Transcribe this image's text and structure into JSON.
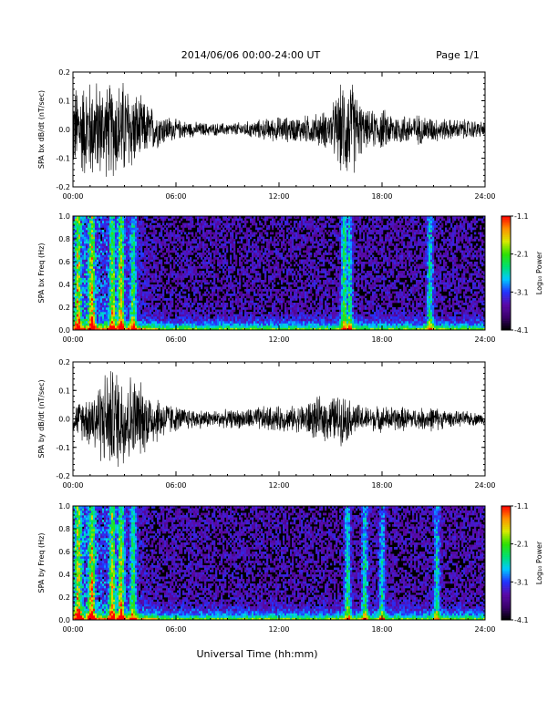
{
  "header": {
    "title": "2014/06/06  00:00-24:00 UT",
    "page": "Page 1/1"
  },
  "xlabel": "Universal Time (hh:mm)",
  "x_ticks": [
    "00:00",
    "06:00",
    "12:00",
    "18:00",
    "24:00"
  ],
  "colorbar": {
    "label": "Log₁₀ Power",
    "ticks": [
      "-1.1",
      "-2.1",
      "-3.1",
      "-4.1"
    ],
    "range": [
      -4.1,
      -1.1
    ],
    "colormap": [
      "#000000",
      "#3a006b",
      "#5a0aa8",
      "#2233ff",
      "#00c8ff",
      "#00e070",
      "#30e000",
      "#d8e800",
      "#ff9000",
      "#ff0000"
    ]
  },
  "panels": [
    {
      "id": "bx_dbdt",
      "type": "line",
      "ylabel": "SPA bx dB/dt (nT/sec)",
      "yticks": [
        "0.2",
        "0.1",
        "0.0",
        "-0.1",
        "-0.2"
      ],
      "ylim": [
        -0.2,
        0.2
      ],
      "xlim": [
        0,
        24
      ]
    },
    {
      "id": "bx_freq",
      "type": "heatmap",
      "ylabel": "SPA bx Freq (Hz)",
      "yticks": [
        "1.0",
        "0.8",
        "0.6",
        "0.4",
        "0.2",
        "0.0"
      ],
      "ylim": [
        0.0,
        1.0
      ],
      "xlim": [
        0,
        24
      ]
    },
    {
      "id": "by_dbdt",
      "type": "line",
      "ylabel": "SPA by dB/dt (nT/sec)",
      "yticks": [
        "0.2",
        "0.1",
        "0.0",
        "-0.1",
        "-0.2"
      ],
      "ylim": [
        -0.2,
        0.2
      ],
      "xlim": [
        0,
        24
      ]
    },
    {
      "id": "by_freq",
      "type": "heatmap",
      "ylabel": "SPA by Freq (Hz)",
      "yticks": [
        "1.0",
        "0.8",
        "0.6",
        "0.4",
        "0.2",
        "0.0"
      ],
      "ylim": [
        0.0,
        1.0
      ],
      "xlim": [
        0,
        24
      ]
    }
  ],
  "chart_data": [
    {
      "type": "line",
      "ylabel": "SPA bx dB/dt (nT/sec)",
      "x_unit": "hours UT",
      "ylim": [
        -0.2,
        0.2
      ],
      "xlim": [
        0,
        24
      ],
      "envelope_hours": [
        0,
        1,
        2,
        3,
        4,
        5,
        6,
        7,
        8,
        9,
        10,
        11,
        12,
        13,
        14,
        15,
        15.8,
        16.2,
        17,
        18,
        19,
        20,
        21,
        22,
        23,
        24
      ],
      "envelope_amplitude": [
        0.17,
        0.2,
        0.18,
        0.2,
        0.12,
        0.07,
        0.04,
        0.03,
        0.025,
        0.025,
        0.03,
        0.04,
        0.05,
        0.05,
        0.06,
        0.08,
        0.2,
        0.2,
        0.07,
        0.08,
        0.06,
        0.06,
        0.05,
        0.04,
        0.04,
        0.03
      ]
    },
    {
      "type": "heatmap",
      "ylabel": "SPA bx Freq (Hz)",
      "ylim": [
        0.0,
        1.0
      ],
      "zlim": [
        -4.1,
        -1.1
      ],
      "activity_hours": [
        0.3,
        1.1,
        2.3,
        2.8,
        3.5,
        15.8,
        16.1,
        20.8
      ],
      "activity_strength": [
        0.7,
        0.85,
        0.75,
        0.85,
        0.6,
        0.7,
        0.6,
        0.55
      ]
    },
    {
      "type": "line",
      "ylabel": "SPA by dB/dt (nT/sec)",
      "x_unit": "hours UT",
      "ylim": [
        -0.2,
        0.2
      ],
      "xlim": [
        0,
        24
      ],
      "envelope_hours": [
        0,
        1,
        2,
        3,
        4,
        5,
        6,
        7,
        8,
        9,
        10,
        11,
        12,
        13,
        14,
        15,
        15.8,
        16.2,
        17,
        18,
        19,
        20,
        21,
        22,
        23,
        24
      ],
      "envelope_amplitude": [
        0.05,
        0.11,
        0.2,
        0.2,
        0.14,
        0.09,
        0.05,
        0.04,
        0.035,
        0.035,
        0.04,
        0.05,
        0.05,
        0.05,
        0.08,
        0.09,
        0.1,
        0.07,
        0.05,
        0.05,
        0.05,
        0.04,
        0.05,
        0.03,
        0.03,
        0.02
      ]
    },
    {
      "type": "heatmap",
      "ylabel": "SPA by Freq (Hz)",
      "ylim": [
        0.0,
        1.0
      ],
      "zlim": [
        -4.1,
        -1.1
      ],
      "activity_hours": [
        0.3,
        1.1,
        2.3,
        2.8,
        3.5,
        16.0,
        17.0,
        18.0,
        21.2
      ],
      "activity_strength": [
        0.75,
        0.85,
        0.8,
        0.85,
        0.6,
        0.6,
        0.55,
        0.5,
        0.5
      ]
    }
  ]
}
